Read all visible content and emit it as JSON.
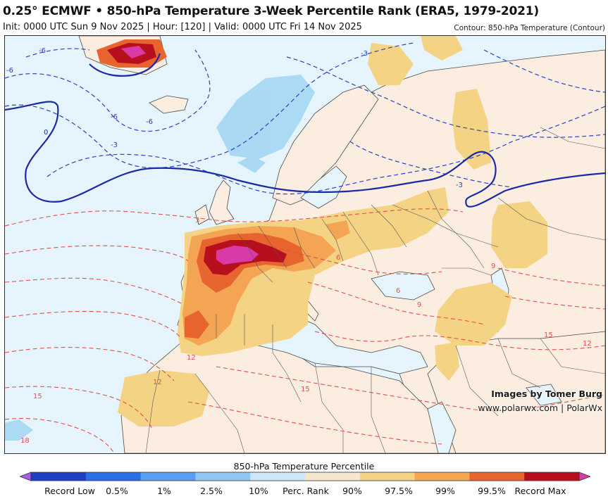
{
  "header": {
    "title": "0.25° ECMWF • 850-hPa Temperature 3-Week Percentile Rank (ERA5, 1979-2021)",
    "subtitle": "Init: 0000 UTC Sun 9 Nov 2025 | Hour: [120] | Valid: 0000 UTC Fri 14 Nov 2025",
    "contour_label": "Contour: 850-hPa Temperature (Contour)"
  },
  "map": {
    "contour_labels": [
      "-6",
      "-6",
      "-6",
      "-3",
      "-3",
      "0",
      "-6",
      "-3",
      "3",
      "6",
      "12",
      "12",
      "15",
      "15",
      "18",
      "9",
      "6",
      "12",
      "15",
      "9"
    ],
    "colors": {
      "background_sea": "#e6f5fd",
      "land": "#fbeee0",
      "p90": "#f5d385",
      "p97": "#f3a553",
      "p99": "#e8642f",
      "p995": "#b80f1f",
      "record_max": "#d93aa5",
      "p10": "#a7d8f3",
      "cold_contour": "#2b3fc9",
      "warm_contour": "#e05050",
      "zero_contour": "#1a2aa8"
    }
  },
  "credits": {
    "author": "Images by Tomer Burg",
    "site": "www.polarwx.com | PolarWx"
  },
  "legend": {
    "title": "850-hPa Temperature Percentile",
    "labels": [
      "Record Low",
      "0.5%",
      "1%",
      "2.5%",
      "10%",
      "Perc. Rank",
      "90%",
      "97.5%",
      "99%",
      "99.5%",
      "Record Max"
    ],
    "segment_colors": [
      "#a25ee8",
      "#1f3fc6",
      "#2a6fe8",
      "#5a9ef0",
      "#8ec6f4",
      "#cbe7f8",
      "#f5e7cf",
      "#f5d385",
      "#f3a553",
      "#e8642f",
      "#b80f1f",
      "#d93aa5"
    ]
  }
}
